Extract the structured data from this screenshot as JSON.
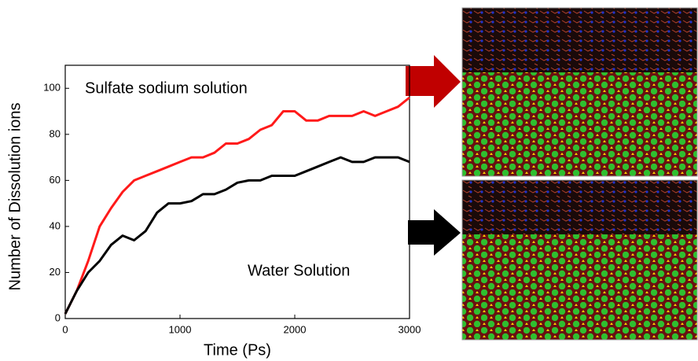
{
  "chart_data": {
    "type": "line",
    "xlabel": "Time (Ps)",
    "ylabel": "Number of Dissolution ions",
    "annotations": [
      "Sulfate sodium solution",
      "Water Solution"
    ],
    "x": [
      0,
      100,
      200,
      300,
      400,
      500,
      600,
      700,
      800,
      900,
      1000,
      1100,
      1200,
      1300,
      1400,
      1500,
      1600,
      1700,
      1800,
      1900,
      2000,
      2100,
      2200,
      2300,
      2400,
      2500,
      2600,
      2700,
      2800,
      2900,
      3000
    ],
    "series": [
      {
        "color": "#ff1a1a",
        "values": [
          2,
          12,
          25,
          40,
          48,
          55,
          60,
          62,
          64,
          66,
          68,
          70,
          70,
          72,
          76,
          76,
          78,
          82,
          84,
          90,
          90,
          86,
          86,
          88,
          88,
          88,
          90,
          88,
          90,
          92,
          96
        ]
      },
      {
        "color": "#000000",
        "values": [
          2,
          12,
          20,
          25,
          32,
          36,
          34,
          38,
          46,
          50,
          50,
          51,
          54,
          54,
          56,
          59,
          60,
          60,
          62,
          62,
          62,
          64,
          66,
          68,
          70,
          68,
          68,
          70,
          70,
          70,
          68
        ]
      }
    ],
    "xlim": [
      0,
      3000
    ],
    "ylim": [
      0,
      110
    ],
    "xticks": [
      0,
      1000,
      2000,
      3000
    ],
    "yticks": [
      0,
      20,
      40,
      60,
      80,
      100
    ]
  }
}
